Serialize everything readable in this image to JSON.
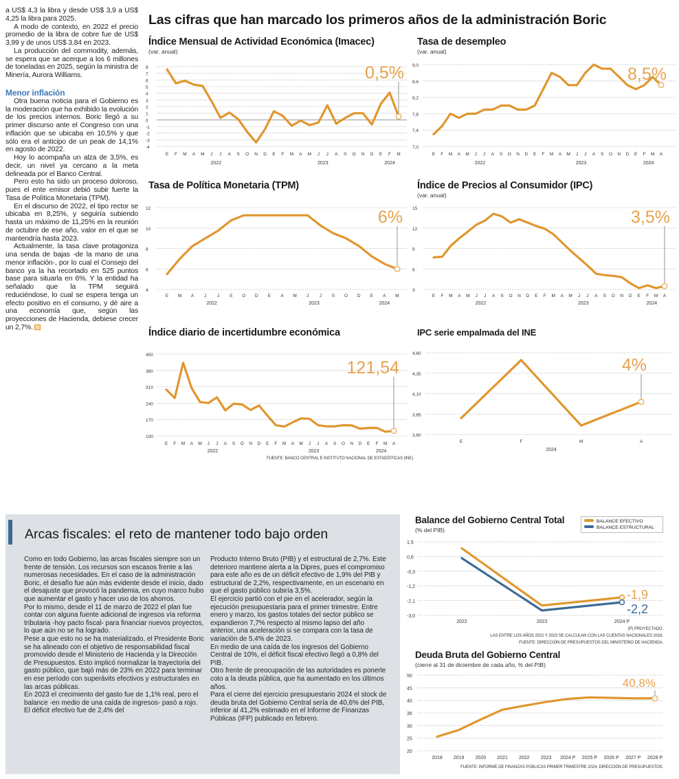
{
  "left_column": {
    "paragraphs_top": [
      "a US$ 4,3 la libra y desde US$ 3,9 a US$ 4,25 la libra para 2025.",
      "A modo de contexto, en 2022 el precio promedio de la libra de cobre fue de US$ 3,99 y de unos US$ 3,84 en 2023.",
      "La producción del commodity, además, se espera que se acerque a los 6 millones de toneladas en 2025, según la ministra de Minería, Aurora Williams."
    ],
    "heading": "Menor inflación",
    "paragraphs_bottom": [
      "Otra buena noticia para el Gobierno es la moderación que ha exhibido la evolución de los precios internos. Boric llegó a su primer discurso ante el Congreso con una inflación que se ubicaba en 10,5% y que sólo era el anticipo de un peak de 14,1% en agosto de 2022.",
      "Hoy lo acompaña un alza de 3,5%, es decir, un nivel ya cercano a la meta delineada por el Banco Central.",
      "Pero esto ha sido un proceso doloroso, pues el ente emisor debió subir fuerte la Tasa de Política Monetaria (TPM).",
      "En el discurso de 2022, el tipo rector se ubicaba en 8,25%, y seguiría subiendo hasta un máximo de 11,25% en la reunión de octubre de ese año, valor en el que se mantendría hasta 2023.",
      "Actualmente, la tasa clave protagoniza una senda de bajas -de la mano de una menor inflación-, por lo cual el Consejo del banco ya la ha recortado en 525 puntos base para situarla en 6%. Y la entidad ha señalado que la TPM seguirá reduciéndose, lo cual se espera tenga un efecto positivo en el consumo, y dé aire a una economía que, según las proyecciones de Hacienda, debiese crecer un 2,7%."
    ]
  },
  "main_title": "Las cifras que han marcado los primeros años de la administración Boric",
  "source_top": "Fuente: Banco Central e Instituto Nacional de Estadísticas (INE)",
  "fiscal": {
    "title": "Arcas fiscales: el reto de mantener todo bajo orden",
    "col1": [
      "Como en todo Gobierno, las arcas fiscales siempre son un frente de tensión. Los recursos son escasos frente a las numerosas necesidades. En el caso de la administración Boric, el desafío fue aún más evidente desde el inicio, dado el desajuste que provocó la pandemia, en cuyo marco hubo que aumentar el gasto y hacer uso de los ahorros.",
      "Por lo mismo, desde el 11 de marzo de 2022 el plan fue contar con alguna fuente adicional de ingresos vía reforma tributaria -hoy pacto fiscal- para financiar nuevos proyectos, lo que aún no se ha logrado.",
      "Pese a que esto no se ha materializado, el Presidente Boric se ha alineado con el objetivo de responsabilidad fiscal promovido desde el Ministerio de Hacienda y la Dirección de Presupuestos. Esto implicó normalizar la trayectoria del gasto público, que bajó más de 23% en 2022 para terminar en ese período con superávits efectivos y estructurales en las arcas públicas.",
      "En 2023 el crecimiento del gasto fue de 1,1% real, pero el balance -en medio de una caída de ingresos- pasó a rojo. El déficit efectivo fue de 2,4% del"
    ],
    "col2": [
      "Producto Interno Bruto (PIB) y el estructural de 2,7%. Este deterioro mantiene alerta a la Dipres, pues el compromiso para este año es de un déficit efectivo de 1,9% del PIB y estructural de 2,2%, respectivamente, en un escenario en que el gasto público subiría 3,5%.",
      "El ejercicio partió con el pie en el acelerador, según la ejecución presupuestaria para el primer trimestre. Entre enero y marzo, los gastos totales del sector público se expandieron 7,7% respecto al mismo lapso del año anterior, una aceleración si se compara con la tasa de variación de 5,4% de 2023.",
      "En medio de una caída de los ingresos del Gobierno Central de 10%, el déficit fiscal efectivo llegó a 0,8% del PIB.",
      "Otro frente de preocupación de las autoridades es ponerle coto a la deuda pública, que ha aumentado en los últimos años.",
      "Para el cierre del ejercicio presupuestario 2024 el stock de deuda bruta del Gobierno Central sería de 40,6% del PIB, inferior al 41,2% estimado en el Informe de Finanzas Públicas (IFP) publicado en febrero."
    ]
  },
  "colors": {
    "series_orange": "#e0962e",
    "series_blue": "#3e6a94",
    "annotation": "#e6a24e",
    "heading_blue": "#3d7ab8",
    "box_bg": "#dde1e6"
  },
  "chart_data": [
    {
      "type": "line",
      "title": "Índice Mensual de Actividad Económica (Imacec)",
      "subtitle": "(var. anual)",
      "x": [
        "E",
        "F",
        "M",
        "A",
        "M",
        "J",
        "J",
        "A",
        "S",
        "O",
        "N",
        "D",
        "E",
        "F",
        "M",
        "A",
        "M",
        "J",
        "J",
        "A",
        "S",
        "O",
        "N",
        "D",
        "E",
        "F",
        "M"
      ],
      "year_labels": [
        {
          "label": "2022",
          "at": 5.5
        },
        {
          "label": "2023",
          "at": 17.5
        },
        {
          "label": "2024",
          "at": 25
        }
      ],
      "yticks": [
        8,
        7,
        6,
        5,
        4,
        3,
        2,
        1,
        0,
        -1,
        -2,
        -3,
        -4
      ],
      "ylim": [
        -4,
        8
      ],
      "zero_line": true,
      "values": [
        7.6,
        5.5,
        5.9,
        5.3,
        5.1,
        2.8,
        0.3,
        1.1,
        0.1,
        -1.8,
        -3.4,
        -1.4,
        1.3,
        0.6,
        -0.9,
        -0.1,
        -0.8,
        -0.4,
        2.2,
        -0.6,
        0.3,
        1.0,
        1.0,
        -0.7,
        2.4,
        4.1,
        0.5
      ],
      "annotation": "0,5%",
      "grid": true
    },
    {
      "type": "line",
      "title": "Tasa de desempleo",
      "subtitle": "(var. anual)",
      "x": [
        "E",
        "F",
        "M",
        "A",
        "M",
        "J",
        "J",
        "A",
        "S",
        "O",
        "N",
        "D",
        "E",
        "F",
        "M",
        "A",
        "M",
        "J",
        "J",
        "A",
        "S",
        "O",
        "N",
        "D",
        "E",
        "F",
        "M",
        "A"
      ],
      "year_labels": [
        {
          "label": "2022",
          "at": 5.5
        },
        {
          "label": "2023",
          "at": 17.5
        },
        {
          "label": "2024",
          "at": 25.5
        }
      ],
      "yticks": [
        "9,0",
        "8,6",
        "8,2",
        "7,8",
        "7,4",
        "7,0"
      ],
      "ylim": [
        7.0,
        9.0
      ],
      "values": [
        7.3,
        7.5,
        7.8,
        7.7,
        7.8,
        7.8,
        7.9,
        7.9,
        8.0,
        8.0,
        7.9,
        7.9,
        8.0,
        8.4,
        8.8,
        8.7,
        8.5,
        8.5,
        8.8,
        9.0,
        8.9,
        8.9,
        8.7,
        8.5,
        8.4,
        8.5,
        8.7,
        8.5
      ],
      "annotation": "8,5%",
      "grid": true
    },
    {
      "type": "line",
      "title": "Tasa de Política Monetaria (TPM)",
      "x": [
        "E",
        "M",
        "A",
        "J",
        "J",
        "S",
        "O",
        "D",
        "E",
        "A",
        "M",
        "J",
        "J",
        "S",
        "O",
        "D",
        "E",
        "A",
        "M"
      ],
      "year_labels": [
        {
          "label": "2022",
          "at": 3.5
        },
        {
          "label": "2023",
          "at": 11.5
        },
        {
          "label": "2024",
          "at": 17
        }
      ],
      "yticks": [
        "12",
        "10",
        "8",
        "6",
        "4"
      ],
      "ylim": [
        4,
        12
      ],
      "values": [
        5.5,
        7.0,
        8.25,
        9.0,
        9.75,
        10.75,
        11.25,
        11.25,
        11.25,
        11.25,
        11.25,
        11.25,
        10.25,
        9.5,
        9.0,
        8.25,
        7.25,
        6.5,
        6.0
      ],
      "annotation": "6%",
      "grid": true
    },
    {
      "type": "line",
      "title": "Índice de Precios al Consumidor (IPC)",
      "subtitle": "(var. anual)",
      "x": [
        "E",
        "F",
        "M",
        "A",
        "M",
        "J",
        "J",
        "A",
        "S",
        "O",
        "N",
        "D",
        "E",
        "F",
        "M",
        "A",
        "M",
        "J",
        "J",
        "A",
        "S",
        "O",
        "N",
        "D",
        "E",
        "F",
        "M",
        "A"
      ],
      "year_labels": [
        {
          "label": "2022",
          "at": 5.5
        },
        {
          "label": "2023",
          "at": 17.5
        },
        {
          "label": "2024",
          "at": 25.5
        }
      ],
      "yticks": [
        "15",
        "12",
        "9",
        "6",
        "3"
      ],
      "ylim": [
        3,
        15
      ],
      "values": [
        7.7,
        7.8,
        9.4,
        10.5,
        11.5,
        12.5,
        13.1,
        14.1,
        13.7,
        12.8,
        13.3,
        12.8,
        12.3,
        11.9,
        11.1,
        9.9,
        8.7,
        7.6,
        6.5,
        5.3,
        5.1,
        5.0,
        4.8,
        3.9,
        3.2,
        3.6,
        3.2,
        3.5
      ],
      "annotation": "3,5%",
      "grid": true
    },
    {
      "type": "line",
      "title": "Índice diario de incertidumbre económica",
      "x": [
        "E",
        "F",
        "M",
        "A",
        "M",
        "J",
        "J",
        "A",
        "S",
        "O",
        "N",
        "D",
        "E",
        "F",
        "M",
        "A",
        "M",
        "J",
        "J",
        "A",
        "S",
        "O",
        "N",
        "D",
        "E",
        "F",
        "M",
        "A"
      ],
      "year_labels": [
        {
          "label": "2022",
          "at": 5.5
        },
        {
          "label": "2023",
          "at": 17.5
        },
        {
          "label": "2024",
          "at": 25.5
        }
      ],
      "yticks": [
        "450",
        "380",
        "310",
        "240",
        "170",
        "100"
      ],
      "ylim": [
        100,
        450
      ],
      "values": [
        298,
        262,
        413,
        305,
        245,
        241,
        265,
        209,
        238,
        234,
        211,
        230,
        187,
        146,
        140,
        158,
        175,
        173,
        146,
        141,
        141,
        146,
        145,
        131,
        134,
        134,
        118,
        121.54
      ],
      "annotation": "121,54",
      "grid": true
    },
    {
      "type": "line",
      "title": "IPC serie empalmada del INE",
      "x": [
        "E",
        "F",
        "M",
        "A"
      ],
      "year_labels": [
        {
          "label": "2024",
          "at": 1.5
        }
      ],
      "yticks": [
        "4,60",
        "4,35",
        "4,10",
        "3,85",
        "3,60"
      ],
      "ylim": [
        3.6,
        4.6
      ],
      "values": [
        3.8,
        4.51,
        3.71,
        4.0
      ],
      "annotation": "4%",
      "grid": true
    },
    {
      "type": "line",
      "title": "Balance del Gobierno Central Total",
      "subtitle": "(% del PIB)",
      "x": [
        "2022",
        "2023",
        "2024 P"
      ],
      "yticks": [
        "1,5",
        "0,6",
        "-0,3",
        "-1,2",
        "-2,1",
        "-3,0"
      ],
      "ylim": [
        -3.0,
        1.5
      ],
      "legend_position": "top-right",
      "series": [
        {
          "name": "BALANCE EFECTIVO",
          "color": "#e0962e",
          "values": [
            1.1,
            -2.4,
            -1.9
          ],
          "annotation": "-1,9"
        },
        {
          "name": "BALANCE ESTRUCTURAL",
          "color": "#3e6a94",
          "values": [
            0.5,
            -2.7,
            -2.2
          ],
          "annotation": "-2,2"
        }
      ],
      "notes": [
        "(P) Proyectado.",
        "Las entre los años 2021 y 2023 se calculan con las cuentas nacionales 2018.",
        "Fuente: Dirección de Presupuestos del Ministerio de Hacienda."
      ],
      "grid": true
    },
    {
      "type": "line",
      "title": "Deuda Bruta del Gobierno Central",
      "subtitle": "(cierre al 31 de diciembre de cada año, % del PIB)",
      "x": [
        "2018",
        "2019",
        "2020",
        "2021",
        "2022",
        "2023",
        "2024 P",
        "2025 P",
        "2026 P",
        "2027 P",
        "2028 P"
      ],
      "yticks": [
        "50",
        "45",
        "40",
        "35",
        "30",
        "25",
        "20"
      ],
      "ylim": [
        20,
        50
      ],
      "values": [
        25.6,
        28.3,
        32.4,
        36.3,
        37.9,
        39.4,
        40.6,
        41.2,
        41.0,
        40.8,
        40.8
      ],
      "annotation": "40,8%",
      "source": "Fuente: Informe de Finanzas Públicas primer trimestre 2024, Dirección de Presupuestos.",
      "grid": true
    }
  ]
}
